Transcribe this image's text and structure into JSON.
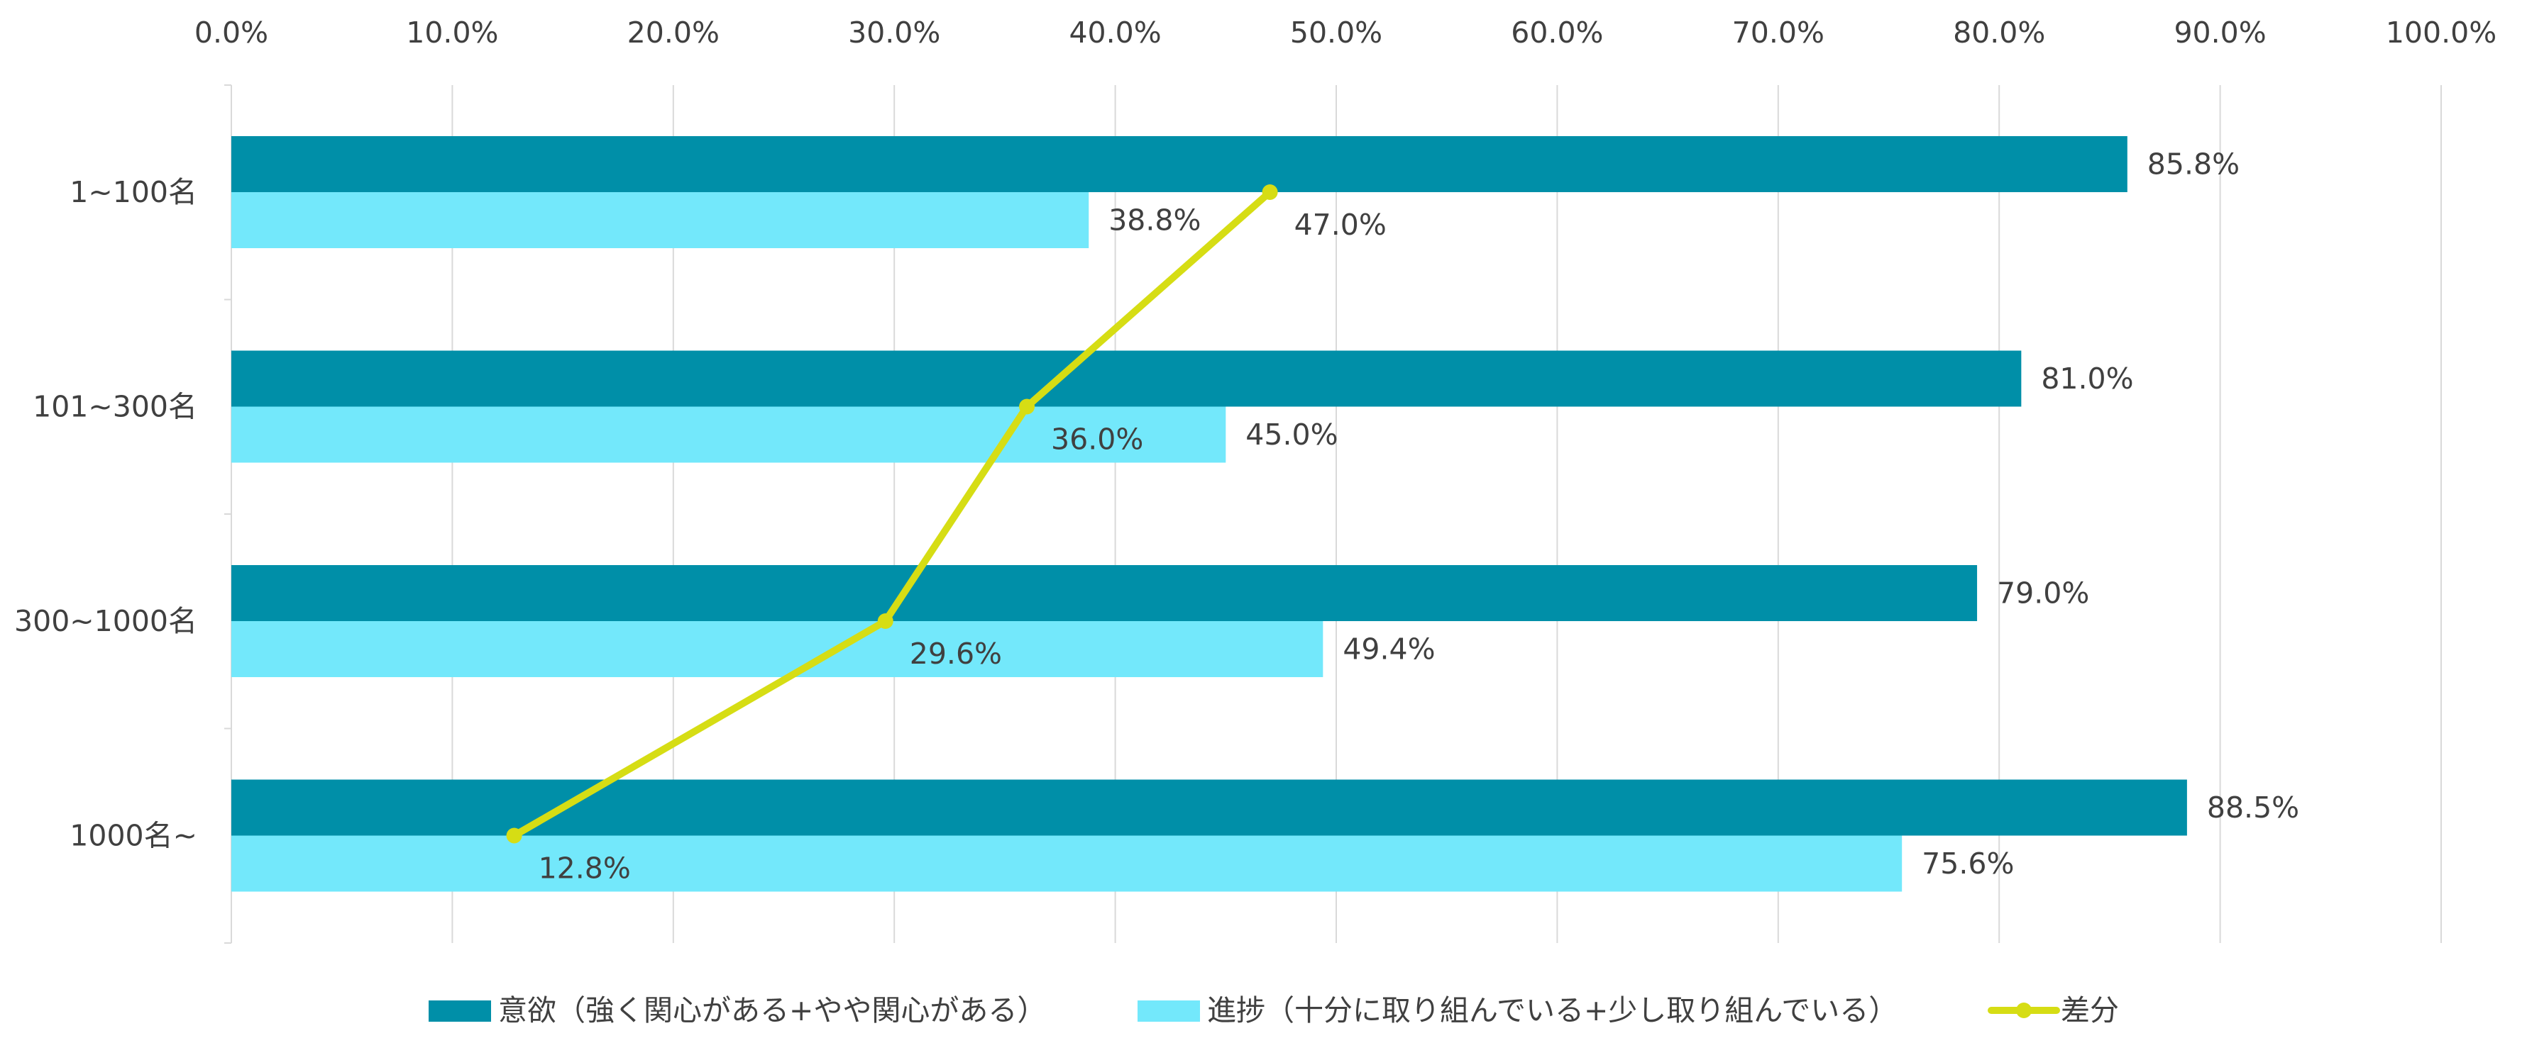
{
  "chart_data": {
    "type": "bar",
    "orientation": "horizontal",
    "categories": [
      "1~100名",
      "101~300名",
      "300~1000名",
      "1000名~"
    ],
    "series": [
      {
        "name": "意欲（強く関心がある+やや関心がある）",
        "kind": "bar",
        "color": "#008fa8",
        "values": [
          85.8,
          81.0,
          79.0,
          88.5
        ],
        "labels": [
          "85.8%",
          "81.0%",
          "79.0%",
          "88.5%"
        ]
      },
      {
        "name": "進捗（十分に取り組んでいる+少し取り組んでいる）",
        "kind": "bar",
        "color": "#73e8fb",
        "values": [
          38.8,
          45.0,
          49.4,
          75.6
        ],
        "labels": [
          "38.8%",
          "45.0%",
          "49.4%",
          "75.6%"
        ]
      },
      {
        "name": "差分",
        "kind": "line",
        "color": "#d6dd14",
        "values": [
          47.0,
          36.0,
          29.6,
          12.8
        ],
        "labels": [
          "47.0%",
          "36.0%",
          "29.6%",
          "12.8%"
        ]
      }
    ],
    "xlim": [
      0,
      100
    ],
    "x_ticks": [
      "0.0%",
      "10.0%",
      "20.0%",
      "30.0%",
      "40.0%",
      "50.0%",
      "60.0%",
      "70.0%",
      "80.0%",
      "90.0%",
      "100.0%"
    ],
    "x_axis_position": "top",
    "grid": true,
    "legend_position": "bottom"
  }
}
